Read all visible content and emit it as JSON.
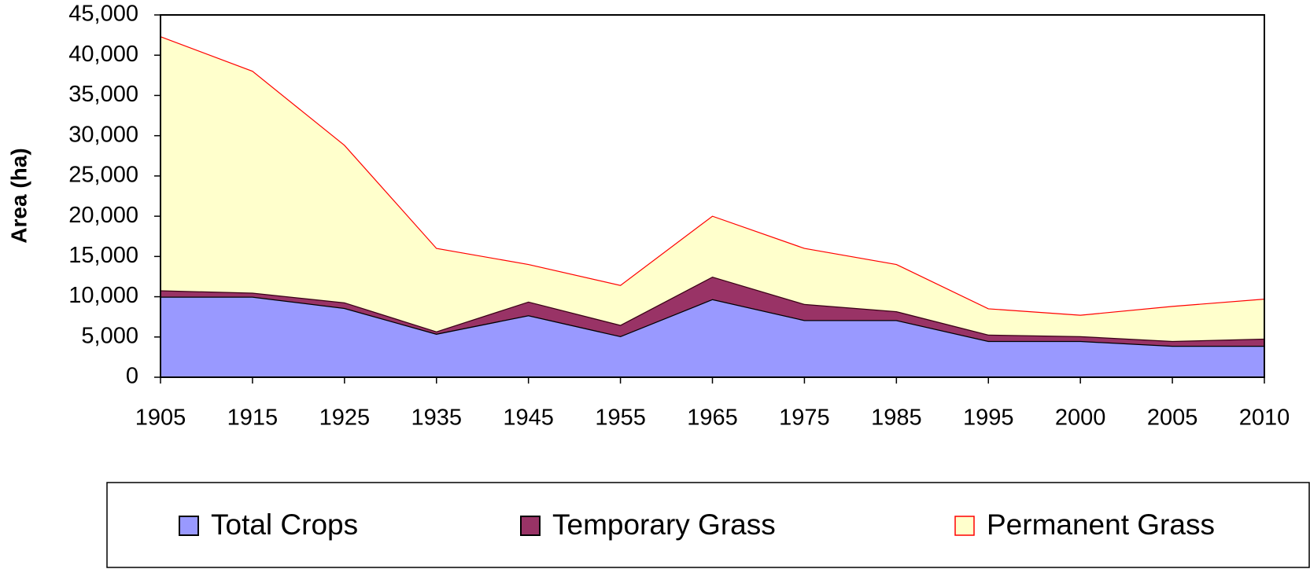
{
  "chart_data": {
    "type": "stacked_area",
    "y_label": "Area (ha)",
    "categories": [
      "1905",
      "1915",
      "1925",
      "1935",
      "1945",
      "1955",
      "1965",
      "1975",
      "1985",
      "1995",
      "2000",
      "2005",
      "2010"
    ],
    "series": [
      {
        "name": "Total Crops",
        "color": "#9999ff",
        "line_color": "#000000",
        "values": [
          10000,
          10000,
          8600,
          5400,
          7700,
          5100,
          9700,
          7100,
          7100,
          4500,
          4500,
          3900,
          3900
        ]
      },
      {
        "name": "Temporary Grass",
        "color": "#993366",
        "line_color": "#3a0016",
        "values": [
          800,
          500,
          700,
          300,
          1700,
          1400,
          2800,
          2000,
          1100,
          800,
          600,
          600,
          900
        ]
      },
      {
        "name": "Permanent Grass",
        "color": "#ffffcc",
        "line_color": "#ff0000",
        "values": [
          31500,
          27500,
          19500,
          10300,
          4600,
          4900,
          7500,
          6900,
          5800,
          3200,
          2600,
          4300,
          4900
        ]
      }
    ],
    "ylim": [
      0,
      45000
    ],
    "yticks": [
      0,
      {
        "value": 5000,
        "label": "5,000"
      },
      {
        "value": 10000,
        "label": "10,000"
      },
      {
        "value": 15000,
        "label": "15,000"
      },
      {
        "value": 20000,
        "label": "20,000"
      },
      {
        "value": 25000,
        "label": "25,000"
      },
      {
        "value": 30000,
        "label": "30,000"
      },
      {
        "value": 35000,
        "label": "35,000"
      },
      {
        "value": 40000,
        "label": "40,000"
      },
      {
        "value": 45000,
        "label": "45,000"
      }
    ],
    "grid": false,
    "legend": "bottom"
  }
}
